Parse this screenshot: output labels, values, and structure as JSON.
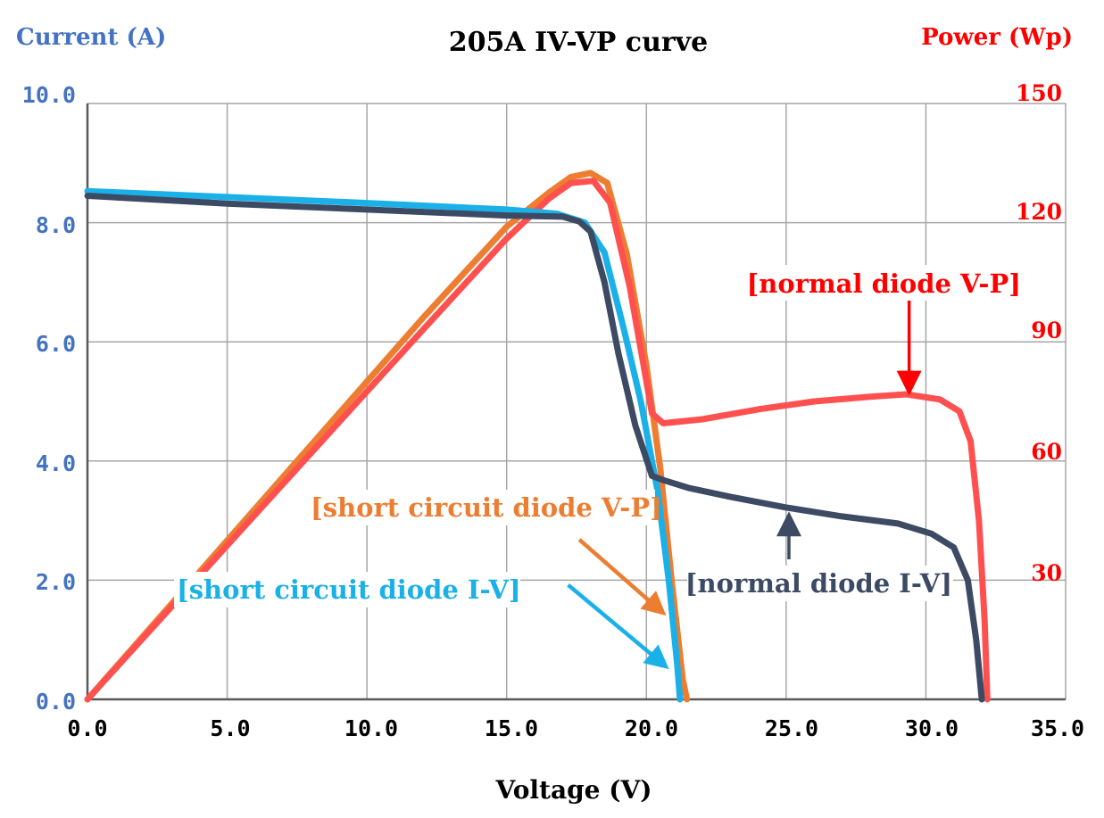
{
  "chart_data": {
    "type": "line",
    "title": "205A IV-VP curve",
    "xlabel": "Voltage (V)",
    "ylabel_left": "Current (A)",
    "ylabel_right": "Power (Wp)",
    "xlim": [
      0,
      35
    ],
    "ylim_left": [
      0,
      10
    ],
    "ylim_right": [
      0,
      150
    ],
    "grid": true,
    "x_ticks": [
      "0.0",
      "5.0",
      "10.0",
      "15.0",
      "20.0",
      "25.0",
      "30.0",
      "35.0"
    ],
    "y_left_ticks": [
      "0.0",
      "2.0",
      "4.0",
      "6.0",
      "8.0",
      "10.0"
    ],
    "y_right_ticks": [
      "30",
      "60",
      "90",
      "120",
      "150"
    ],
    "colors": {
      "left_axis": "#4472c4",
      "right_axis": "#ff0000",
      "normal_vp": "#ff5050",
      "short_vp": "#ed7d31",
      "short_iv": "#1ab0e8",
      "normal_iv": "#3c4a64"
    },
    "series": [
      {
        "name": "[short circuit diode V-P]",
        "axis": "right",
        "color": "#ed7d31",
        "points": [
          [
            0,
            0
          ],
          [
            4,
            32
          ],
          [
            8,
            64
          ],
          [
            12,
            96
          ],
          [
            15,
            119
          ],
          [
            16.5,
            127.5
          ],
          [
            17.3,
            131.5
          ],
          [
            18.0,
            132.5
          ],
          [
            18.6,
            130
          ],
          [
            19.3,
            112
          ],
          [
            20.0,
            84
          ],
          [
            20.5,
            58
          ],
          [
            20.9,
            30
          ],
          [
            21.3,
            5
          ],
          [
            21.45,
            0
          ]
        ]
      },
      {
        "name": "[normal diode V-P]",
        "axis": "right",
        "color": "#ff5050",
        "points": [
          [
            0,
            0
          ],
          [
            4,
            31
          ],
          [
            8,
            62
          ],
          [
            12,
            93
          ],
          [
            15,
            116
          ],
          [
            16.5,
            126
          ],
          [
            17.3,
            130
          ],
          [
            18.1,
            130.5
          ],
          [
            18.7,
            125
          ],
          [
            19.4,
            104
          ],
          [
            19.9,
            84
          ],
          [
            20.2,
            72
          ],
          [
            20.6,
            69.5
          ],
          [
            22,
            70.5
          ],
          [
            24,
            73
          ],
          [
            26,
            75
          ],
          [
            28,
            76.2
          ],
          [
            29.3,
            76.8
          ],
          [
            30.5,
            75.5
          ],
          [
            31.2,
            72.5
          ],
          [
            31.6,
            65
          ],
          [
            31.9,
            45
          ],
          [
            32.1,
            20
          ],
          [
            32.2,
            0
          ]
        ]
      },
      {
        "name": "[short circuit diode I-V]",
        "axis": "left",
        "color": "#1ab0e8",
        "points": [
          [
            0,
            8.53
          ],
          [
            5,
            8.43
          ],
          [
            10,
            8.33
          ],
          [
            15,
            8.22
          ],
          [
            16.8,
            8.15
          ],
          [
            17.8,
            8.0
          ],
          [
            18.5,
            7.5
          ],
          [
            19.2,
            6.2
          ],
          [
            19.8,
            5.0
          ],
          [
            20.4,
            3.5
          ],
          [
            20.8,
            2.0
          ],
          [
            21.1,
            0.6
          ],
          [
            21.2,
            0
          ]
        ]
      },
      {
        "name": "[normal diode I-V]",
        "axis": "left",
        "color": "#3c4a64",
        "points": [
          [
            0,
            8.45
          ],
          [
            5,
            8.32
          ],
          [
            10,
            8.22
          ],
          [
            15,
            8.12
          ],
          [
            17.0,
            8.1
          ],
          [
            17.6,
            8.02
          ],
          [
            18.0,
            7.85
          ],
          [
            18.5,
            7.0
          ],
          [
            19.0,
            5.8
          ],
          [
            19.6,
            4.6
          ],
          [
            20.2,
            3.75
          ],
          [
            20.6,
            3.68
          ],
          [
            21.5,
            3.55
          ],
          [
            23,
            3.4
          ],
          [
            25,
            3.22
          ],
          [
            27,
            3.07
          ],
          [
            29,
            2.95
          ],
          [
            30.2,
            2.78
          ],
          [
            31.0,
            2.55
          ],
          [
            31.5,
            2.0
          ],
          [
            31.8,
            1.0
          ],
          [
            32.0,
            0
          ]
        ]
      }
    ],
    "annotations": [
      {
        "id": "normal_vp",
        "text": "[normal diode V-P]",
        "color": "#ff0000",
        "arrow_from": [
          29.4,
          107.5
        ],
        "arrow_to": [
          29.4,
          78
        ]
      },
      {
        "id": "normal_iv",
        "text": "[normal diode I-V]",
        "color": "#3c4a64",
        "arrow_from": [
          25.1,
          2.35
        ],
        "arrow_to": [
          25.1,
          3.05
        ]
      },
      {
        "id": "short_vp",
        "text": "[short circuit diode V-P]",
        "color": "#ed7d31",
        "arrow_from": [
          17.6,
          2.68
        ],
        "arrow_to": [
          20.6,
          1.45
        ]
      },
      {
        "id": "short_iv",
        "text": "[short circuit diode I-V]",
        "color": "#1ab0e8",
        "arrow_from": [
          17.2,
          1.92
        ],
        "arrow_to": [
          20.7,
          0.55
        ]
      }
    ]
  }
}
